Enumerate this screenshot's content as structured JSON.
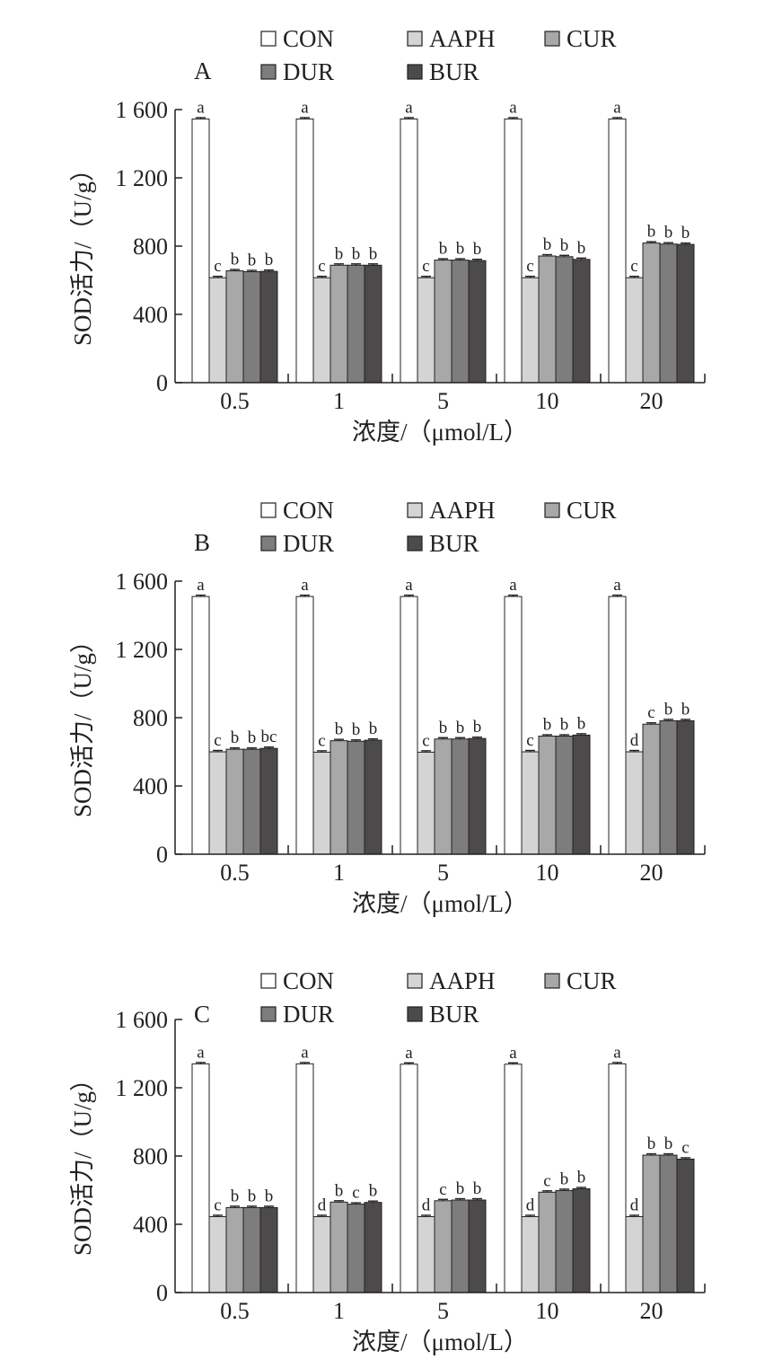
{
  "chart_data": [
    {
      "type": "bar",
      "panel_label": "A",
      "categories": [
        "0.5",
        "1",
        "5",
        "10",
        "20"
      ],
      "series": [
        {
          "name": "CON",
          "color": "#ffffff",
          "values": [
            1545,
            1545,
            1545,
            1545,
            1545
          ],
          "letters": [
            "a",
            "a",
            "a",
            "a",
            "a"
          ]
        },
        {
          "name": "AAPH",
          "color": "#d4d4d4",
          "values": [
            615,
            615,
            615,
            615,
            615
          ],
          "letters": [
            "c",
            "c",
            "c",
            "c",
            "c"
          ]
        },
        {
          "name": "CUR",
          "color": "#a8a8a8",
          "values": [
            655,
            688,
            718,
            742,
            818
          ],
          "letters": [
            "b",
            "b",
            "b",
            "b",
            "b"
          ]
        },
        {
          "name": "DUR",
          "color": "#7d7d7d",
          "values": [
            650,
            688,
            718,
            738,
            812
          ],
          "letters": [
            "b",
            "b",
            "b",
            "b",
            "b"
          ]
        },
        {
          "name": "BUR",
          "color": "#4d4a4c",
          "values": [
            652,
            688,
            715,
            722,
            810
          ],
          "letters": [
            "b",
            "b",
            "b",
            "b",
            "b"
          ]
        }
      ],
      "xlabel": "浓度/（μmol/L）",
      "ylabel": "SOD活力/（U/g）",
      "ylim": [
        0,
        1600
      ],
      "yticks": [
        0,
        400,
        800,
        1200,
        1600
      ],
      "ytick_labels": [
        "0",
        "400",
        "800",
        "1 200",
        "1 600"
      ],
      "grid": false,
      "legend_position": "top"
    },
    {
      "type": "bar",
      "panel_label": "B",
      "categories": [
        "0.5",
        "1",
        "5",
        "10",
        "20"
      ],
      "series": [
        {
          "name": "CON",
          "color": "#ffffff",
          "values": [
            1510,
            1510,
            1510,
            1510,
            1510
          ],
          "letters": [
            "a",
            "a",
            "a",
            "a",
            "a"
          ]
        },
        {
          "name": "AAPH",
          "color": "#d4d4d4",
          "values": [
            600,
            598,
            598,
            600,
            600
          ],
          "letters": [
            "c",
            "c",
            "c",
            "c",
            "d"
          ]
        },
        {
          "name": "CUR",
          "color": "#a8a8a8",
          "values": [
            615,
            665,
            675,
            692,
            762
          ],
          "letters": [
            "b",
            "b",
            "b",
            "b",
            "c"
          ]
        },
        {
          "name": "DUR",
          "color": "#7d7d7d",
          "values": [
            615,
            662,
            675,
            692,
            782
          ],
          "letters": [
            "b",
            "b",
            "b",
            "b",
            "b"
          ]
        },
        {
          "name": "BUR",
          "color": "#4d4a4c",
          "values": [
            620,
            668,
            678,
            698,
            782
          ],
          "letters": [
            "bc",
            "b",
            "b",
            "b",
            "b"
          ]
        }
      ],
      "xlabel": "浓度/（μmol/L）",
      "ylabel": "SOD活力/（U/g）",
      "ylim": [
        0,
        1600
      ],
      "yticks": [
        0,
        400,
        800,
        1200,
        1600
      ],
      "ytick_labels": [
        "0",
        "400",
        "800",
        "1 200",
        "1 600"
      ],
      "grid": false,
      "legend_position": "top"
    },
    {
      "type": "bar",
      "panel_label": "C",
      "categories": [
        "0.5",
        "1",
        "5",
        "10",
        "20"
      ],
      "series": [
        {
          "name": "CON",
          "color": "#ffffff",
          "values": [
            1340,
            1340,
            1338,
            1338,
            1340
          ],
          "letters": [
            "a",
            "a",
            "a",
            "a",
            "a"
          ]
        },
        {
          "name": "AAPH",
          "color": "#d4d4d4",
          "values": [
            445,
            445,
            445,
            445,
            445
          ],
          "letters": [
            "c",
            "d",
            "d",
            "d",
            "d"
          ]
        },
        {
          "name": "CUR",
          "color": "#a8a8a8",
          "values": [
            498,
            530,
            538,
            588,
            805
          ],
          "letters": [
            "b",
            "b",
            "c",
            "c",
            "b"
          ]
        },
        {
          "name": "DUR",
          "color": "#7d7d7d",
          "values": [
            498,
            518,
            542,
            598,
            805
          ],
          "letters": [
            "b",
            "c",
            "b",
            "b",
            "b"
          ]
        },
        {
          "name": "BUR",
          "color": "#4d4a4c",
          "values": [
            498,
            528,
            542,
            608,
            782
          ],
          "letters": [
            "b",
            "b",
            "b",
            "b",
            "c"
          ]
        }
      ],
      "xlabel": "浓度/（μmol/L）",
      "ylabel": "SOD活力/（U/g）",
      "ylim": [
        0,
        1600
      ],
      "yticks": [
        0,
        400,
        800,
        1200,
        1600
      ],
      "ytick_labels": [
        "0",
        "400",
        "800",
        "1 200",
        "1 600"
      ],
      "grid": false,
      "legend_position": "top"
    }
  ]
}
